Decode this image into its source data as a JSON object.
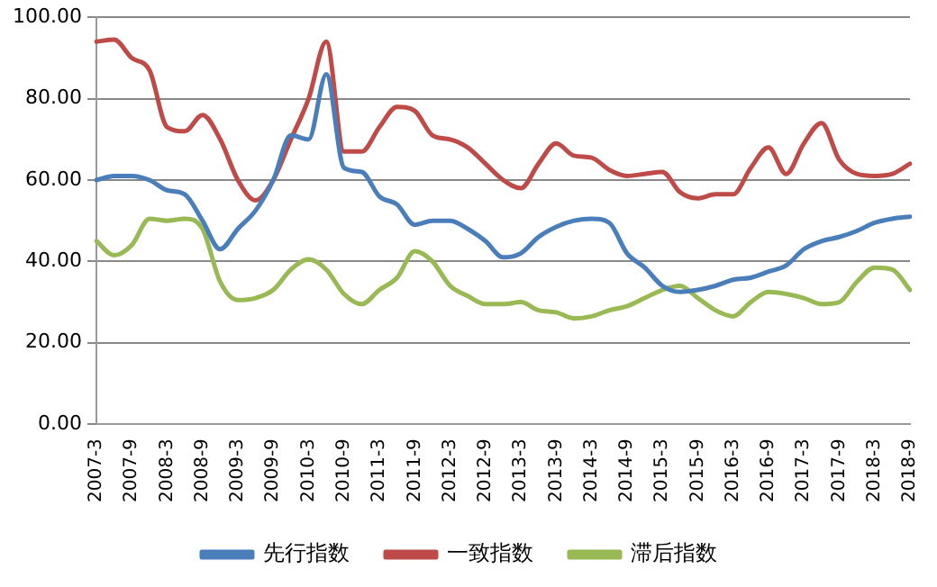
{
  "chart_data": {
    "type": "line",
    "categories": [
      "2007-3",
      null,
      "2007-9",
      null,
      "2008-3",
      null,
      "2008-9",
      null,
      "2009-3",
      null,
      "2009-9",
      null,
      "2010-3",
      null,
      "2010-9",
      null,
      "2011-3",
      null,
      "2011-9",
      null,
      "2012-3",
      null,
      "2012-9",
      null,
      "2013-3",
      null,
      "2013-9",
      null,
      "2014-3",
      null,
      "2014-9",
      null,
      "2015-3",
      null,
      "2015-9",
      null,
      "2016-3",
      null,
      "2016-9",
      null,
      "2017-3",
      null,
      "2017-9",
      null,
      "2018-3",
      null,
      "2018-9"
    ],
    "series": [
      {
        "name": "先行指数",
        "color": "#4a7ebb",
        "values": [
          60,
          61,
          61,
          60,
          57.5,
          56.5,
          50,
          43,
          48,
          52.5,
          60,
          71,
          70,
          86,
          63,
          62,
          56,
          54,
          49,
          50,
          50,
          48,
          45,
          41,
          42,
          46,
          48.5,
          50,
          50.5,
          49.5,
          42,
          38.5,
          34,
          32.5,
          33,
          34,
          35.5,
          36,
          37.5,
          39,
          43,
          45,
          46,
          47.5,
          49.5,
          50.5,
          51
        ]
      },
      {
        "name": "一致指数",
        "color": "#be4b48",
        "values": [
          94,
          94.5,
          90,
          87,
          73,
          72,
          76,
          70,
          60,
          55,
          60,
          70,
          80,
          94,
          67,
          67,
          73,
          78,
          77,
          71,
          70,
          68,
          64,
          60,
          58,
          64,
          69,
          66,
          65.5,
          62.5,
          61,
          61.5,
          62,
          57,
          55.5,
          56.5,
          56.5,
          63,
          68,
          61.5,
          69,
          74,
          65,
          61.5,
          61,
          61.5,
          64
        ]
      },
      {
        "name": "滞后指数",
        "color": "#98b954",
        "values": [
          45,
          41.5,
          44,
          50.5,
          50,
          50.5,
          48,
          35,
          30.5,
          31,
          33,
          38,
          40.5,
          38,
          32,
          29.5,
          33,
          36,
          42.5,
          40,
          34,
          31.5,
          29.5,
          29.5,
          30,
          28,
          27.5,
          26,
          26.5,
          28,
          29,
          31,
          33,
          34,
          31,
          28,
          26.5,
          30,
          32.5,
          32,
          31,
          29.5,
          30,
          35,
          38.5,
          38,
          33
        ]
      }
    ],
    "ylim": [
      0,
      100
    ],
    "yticks": [
      {
        "value": 0,
        "label": "0.00"
      },
      {
        "value": 20,
        "label": "20.00"
      },
      {
        "value": 40,
        "label": "40.00"
      },
      {
        "value": 60,
        "label": "60.00"
      },
      {
        "value": 80,
        "label": "80.00"
      },
      {
        "value": 100,
        "label": "100.00"
      }
    ],
    "grid": "y",
    "legend": "bottom",
    "marker": "none",
    "line_style": "solid"
  }
}
